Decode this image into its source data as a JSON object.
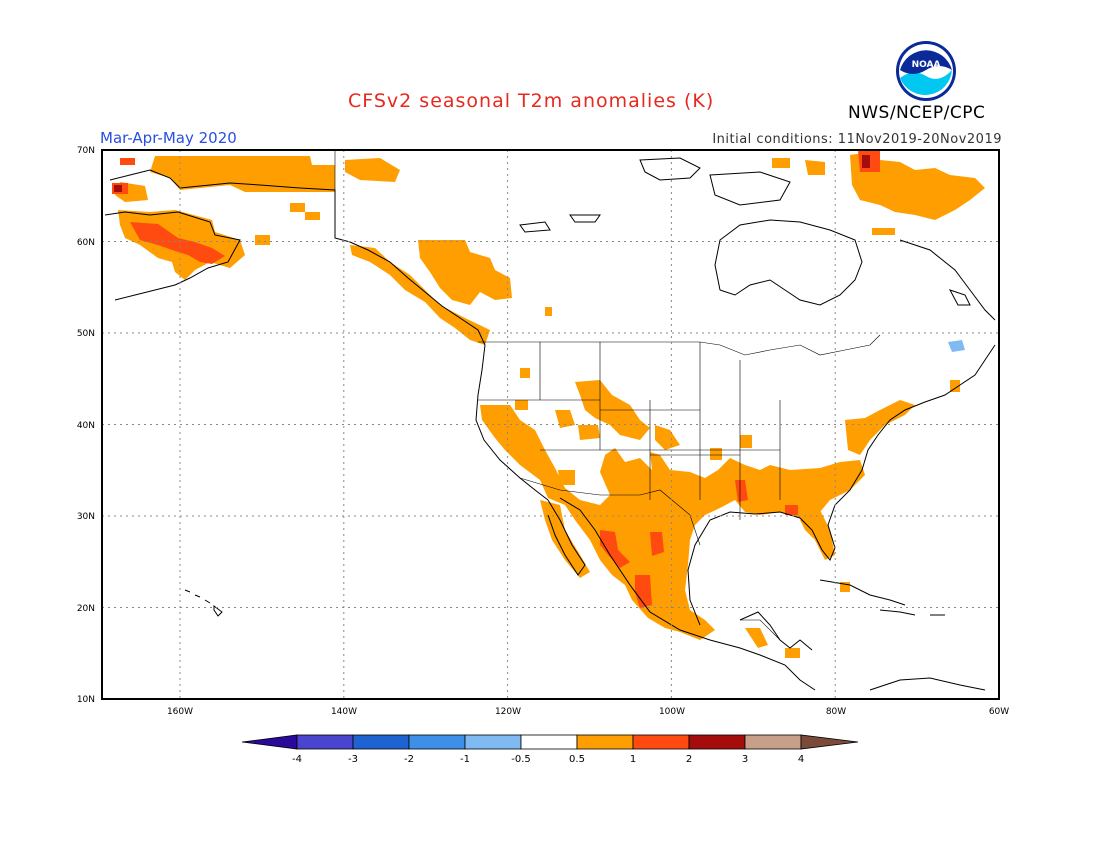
{
  "header": {
    "title": "CFSv2 seasonal T2m anomalies (K)",
    "period": "Mar-Apr-May 2020",
    "initial_conditions": "Initial conditions: 11Nov2019-20Nov2019",
    "agency": "NWS/NCEP/CPC",
    "logo_text": "NOAA"
  },
  "axes": {
    "lat_labels": [
      "70N",
      "60N",
      "50N",
      "40N",
      "30N",
      "20N",
      "10N"
    ],
    "lon_labels": [
      "160W",
      "140W",
      "120W",
      "100W",
      "80W",
      "60W"
    ]
  },
  "legend": {
    "labels": [
      "-4",
      "-3",
      "-2",
      "-1",
      "-0.5",
      "0.5",
      "1",
      "2",
      "3",
      "4"
    ],
    "colors": [
      "#2a0a9a",
      "#4a45d0",
      "#1f62d2",
      "#3d8fe8",
      "#80baf2",
      "#ffffff",
      "#ff9e00",
      "#ff4a10",
      "#a50c0c",
      "#c8a08a",
      "#7a4a3a"
    ]
  },
  "colors": {
    "anomaly_0_5_to_1": "#ff9e00",
    "anomaly_1_to_2": "#ff4a10",
    "anomaly_2_to_3": "#a50c0c",
    "anomaly_neg": "#80baf2"
  }
}
